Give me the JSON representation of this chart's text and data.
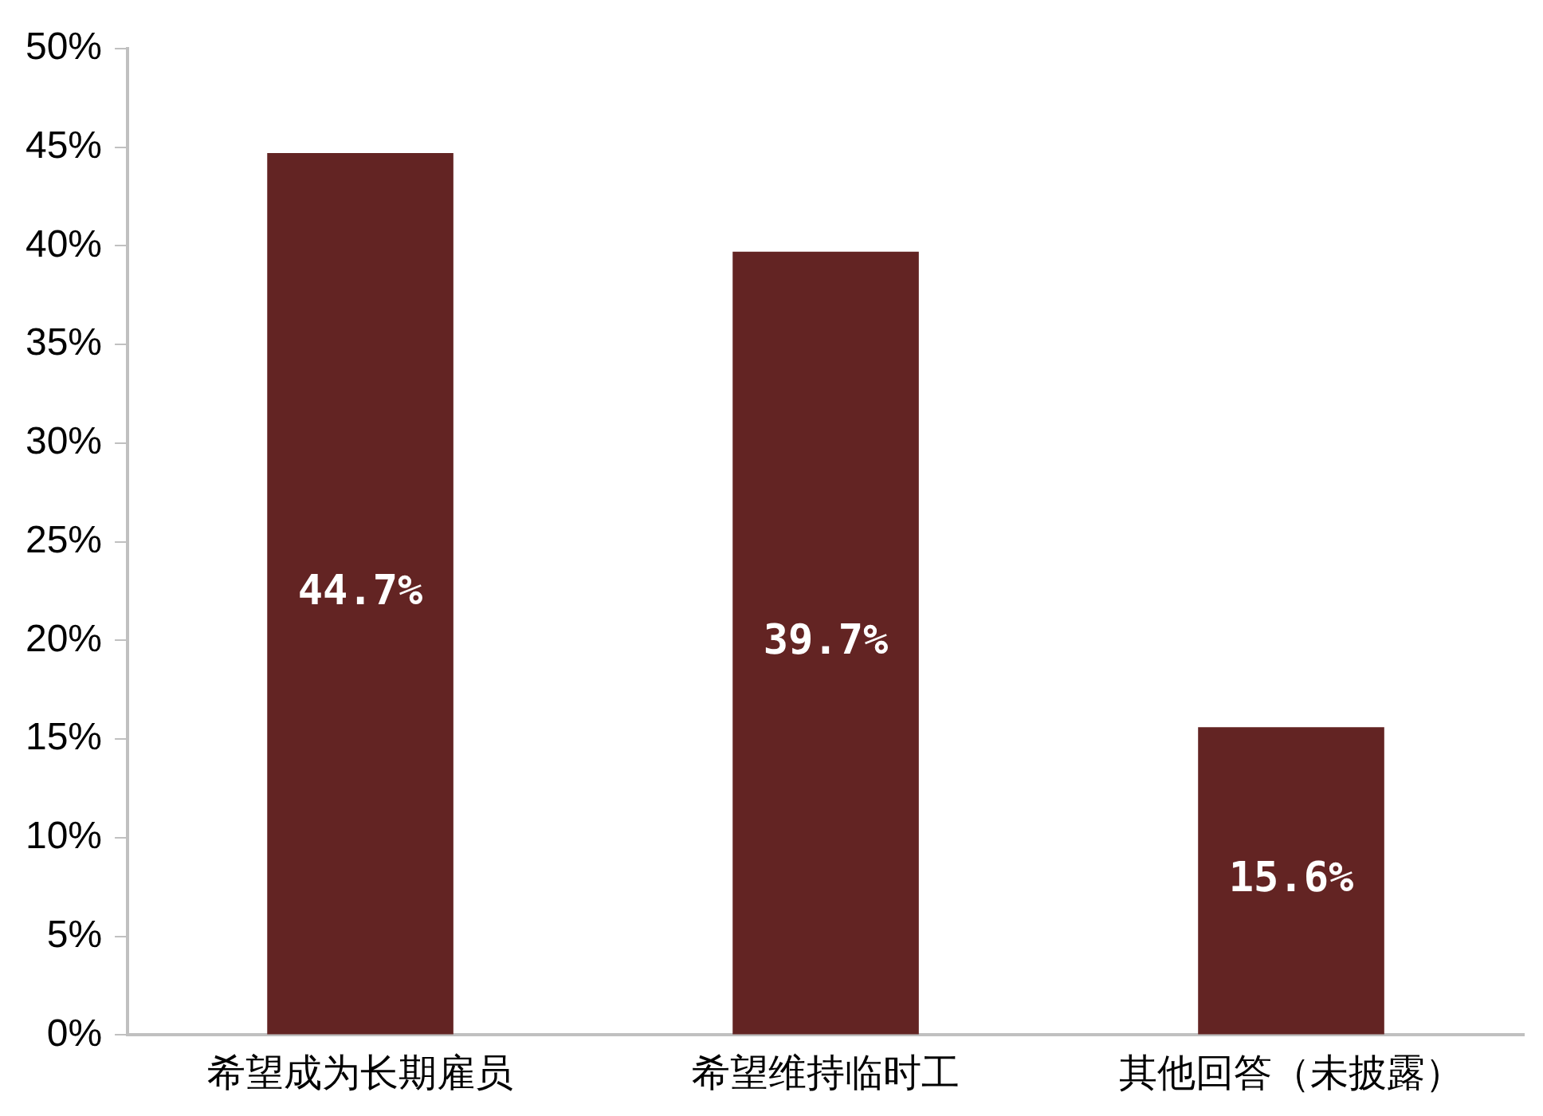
{
  "chart_data": {
    "type": "bar",
    "categories": [
      "希望成为长期雇员",
      "希望维持临时工",
      "其他回答（未披露）"
    ],
    "values": [
      44.7,
      39.7,
      15.6
    ],
    "value_labels": [
      "44.7%",
      "39.7%",
      "15.6%"
    ],
    "color": "#632423",
    "ylim": [
      0,
      50
    ],
    "yticks": [
      {
        "value": 0,
        "label": "0%"
      },
      {
        "value": 5,
        "label": "5%"
      },
      {
        "value": 10,
        "label": "10%"
      },
      {
        "value": 15,
        "label": "15%"
      },
      {
        "value": 20,
        "label": "20%"
      },
      {
        "value": 25,
        "label": "25%"
      },
      {
        "value": 30,
        "label": "30%"
      },
      {
        "value": 35,
        "label": "35%"
      },
      {
        "value": 40,
        "label": "40%"
      },
      {
        "value": 45,
        "label": "45%"
      },
      {
        "value": 50,
        "label": "50%"
      }
    ],
    "grid": false,
    "legend": false
  }
}
